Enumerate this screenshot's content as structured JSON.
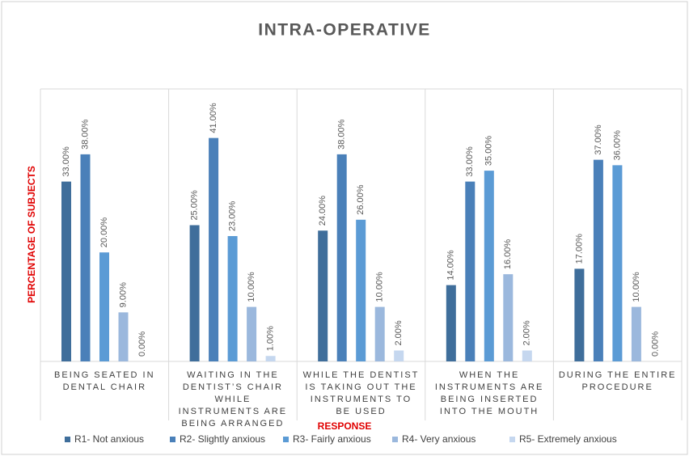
{
  "chart_data": {
    "type": "bar",
    "title": "INTRA-OPERATIVE",
    "x_label": "RESPONSE",
    "y_label": "PERCENTAGE OF SUBJECTS",
    "categories": [
      "BEING SEATED IN DENTAL CHAIR",
      "WAITING IN THE DENTIST’S CHAIR WHILE INSTRUMENTS ARE BEING ARRANGED",
      "WHILE THE DENTIST IS TAKING OUT THE INSTRUMENTS TO BE USED",
      "WHEN THE INSTRUMENTS ARE BEING INSERTED INTO THE MOUTH",
      "DURING THE ENTIRE PROCEDURE"
    ],
    "series": [
      {
        "name": "R1- Not anxious",
        "color": "#3f6e9b",
        "values": [
          33,
          25,
          24,
          14,
          17
        ],
        "value_labels": [
          "33.00%",
          "25.00%",
          "24.00%",
          "14.00%",
          "17.00%"
        ]
      },
      {
        "name": "R2- Slightly anxious",
        "color": "#4a80b9",
        "values": [
          38,
          41,
          38,
          33,
          37
        ],
        "value_labels": [
          "38.00%",
          "41.00%",
          "38.00%",
          "33.00%",
          "37.00%"
        ]
      },
      {
        "name": "R3- Fairly anxious",
        "color": "#5b9bd5",
        "values": [
          20,
          23,
          26,
          35,
          36
        ],
        "value_labels": [
          "20.00%",
          "23.00%",
          "26.00%",
          "35.00%",
          "36.00%"
        ]
      },
      {
        "name": "R4- Very anxious",
        "color": "#9bb8dd",
        "values": [
          9,
          10,
          10,
          16,
          10
        ],
        "value_labels": [
          "9.00%",
          "10.00%",
          "10.00%",
          "16.00%",
          "10.00%"
        ]
      },
      {
        "name": "R5- Extremely anxious",
        "color": "#c5d7ef",
        "values": [
          0,
          1,
          2,
          2,
          0
        ],
        "value_labels": [
          "0.00%",
          "1.00%",
          "2.00%",
          "2.00%",
          "0.00%"
        ]
      }
    ],
    "ylim": [
      0,
      50
    ],
    "legend": "bottom"
  }
}
